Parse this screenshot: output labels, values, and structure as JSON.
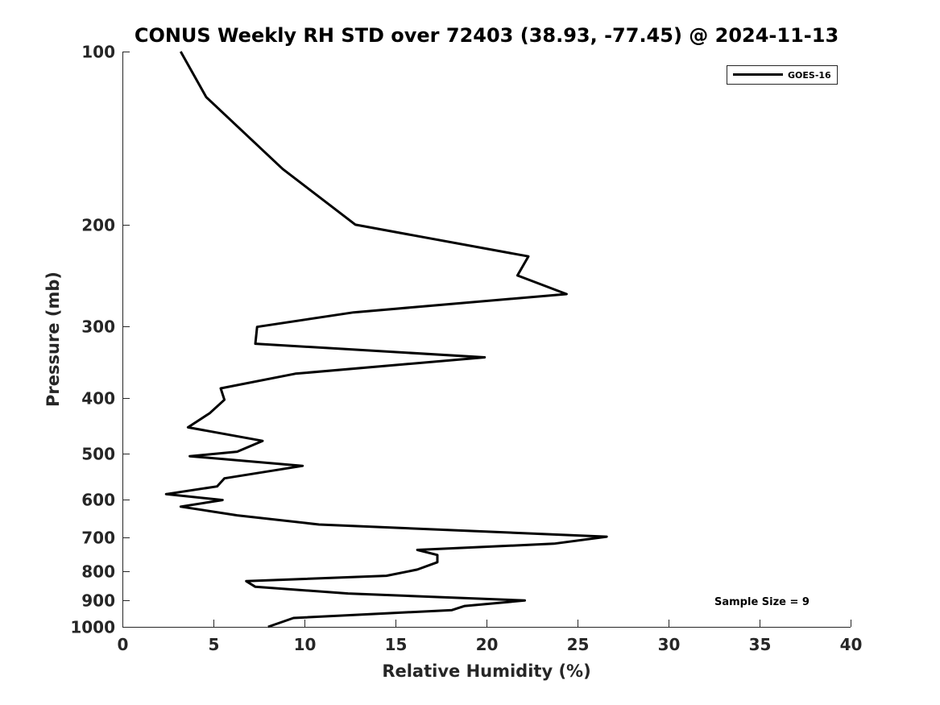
{
  "chart_data": {
    "type": "line",
    "title": "CONUS Weekly RH STD over 72403 (38.93, -77.45) @ 2024-11-13",
    "xlabel": "Relative Humidity (%)",
    "ylabel": "Pressure (mb)",
    "xlim": [
      0,
      40
    ],
    "ylim": [
      100,
      1000
    ],
    "y_scale": "log",
    "y_reversed": true,
    "x_ticks": [
      0,
      5,
      10,
      15,
      20,
      25,
      30,
      35,
      40
    ],
    "y_ticks": [
      100,
      200,
      300,
      400,
      500,
      600,
      700,
      800,
      900,
      1000
    ],
    "grid": false,
    "legend_position": "top-right",
    "annotation": "Sample Size = 9",
    "series": [
      {
        "name": "GOES-16",
        "color": "#000000",
        "x": [
          3.2,
          4.6,
          8.8,
          12.8,
          22.3,
          21.7,
          24.4,
          12.7,
          7.4,
          7.3,
          19.9,
          9.5,
          5.4,
          5.6,
          4.8,
          3.6,
          7.7,
          6.3,
          3.7,
          9.9,
          5.6,
          5.2,
          2.4,
          5.5,
          3.2,
          6.3,
          10.8,
          26.6,
          23.7,
          16.2,
          17.3,
          17.3,
          16.2,
          14.5,
          6.8,
          7.3,
          12.4,
          22.1,
          18.8,
          18.1,
          9.4,
          8.0
        ],
        "y": [
          100,
          120,
          160,
          200,
          227,
          245,
          264,
          284,
          301,
          322,
          340,
          363,
          385,
          403,
          425,
          450,
          475,
          496,
          505,
          525,
          552,
          570,
          588,
          602,
          618,
          640,
          664,
          697,
          717,
          735,
          750,
          772,
          795,
          815,
          833,
          852,
          875,
          900,
          920,
          935,
          965,
          1000
        ]
      }
    ]
  }
}
